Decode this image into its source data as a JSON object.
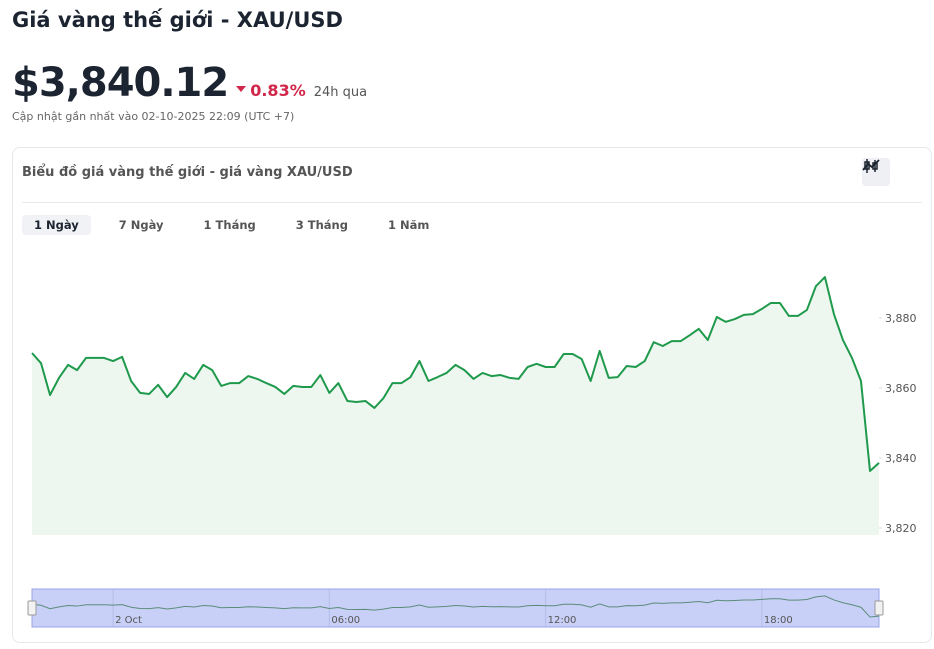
{
  "header": {
    "title": "Giá vàng thế giới - XAU/USD",
    "price": "$3,840.12",
    "change": "0.83%",
    "period": "24h qua",
    "updated": "Cập nhật gần nhất vào 02-10-2025 22:09 (UTC +7)"
  },
  "card": {
    "title": "Biểu đồ giá vàng thế giới - giá vàng XAU/USD",
    "tabs": [
      "1 Ngày",
      "7 Ngày",
      "1 Tháng",
      "3 Tháng",
      "1 Năm"
    ],
    "active_tab": 0
  },
  "chart_data": {
    "type": "area",
    "color": "#1f9a4c",
    "fill": "#eef6f0",
    "x": [
      -2.25,
      -2,
      -1.75,
      -1.5,
      -1.25,
      -1,
      -0.75,
      -0.5,
      -0.25,
      0,
      0.25,
      0.5,
      0.75,
      1,
      1.25,
      1.5,
      1.75,
      2,
      2.25,
      2.5,
      2.75,
      3,
      3.25,
      3.5,
      3.75,
      4,
      4.25,
      4.5,
      4.75,
      5,
      5.25,
      5.5,
      5.75,
      6,
      6.25,
      6.5,
      6.75,
      7,
      7.25,
      7.5,
      7.75,
      8,
      8.25,
      8.5,
      8.75,
      9,
      9.25,
      9.5,
      9.75,
      10,
      10.25,
      10.5,
      10.75,
      11,
      11.25,
      11.5,
      11.75,
      12,
      12.25,
      12.5,
      12.75,
      13,
      13.25,
      13.5,
      13.75,
      14,
      14.25,
      14.5,
      14.75,
      15,
      15.25,
      15.5,
      15.75,
      16,
      16.25,
      16.5,
      16.75,
      17,
      17.25,
      17.5,
      17.75,
      18,
      18.25,
      18.5,
      18.75,
      19,
      19.25,
      19.5,
      19.75,
      20,
      20.25,
      20.5,
      20.75,
      21,
      21.25
    ],
    "values": [
      3870.0,
      3867.1,
      3858.0,
      3862.9,
      3866.6,
      3865.1,
      3868.6,
      3868.6,
      3868.6,
      3867.7,
      3868.9,
      3862.0,
      3858.6,
      3858.3,
      3860.9,
      3857.4,
      3860.3,
      3864.3,
      3862.6,
      3866.6,
      3865.1,
      3860.6,
      3861.4,
      3861.4,
      3863.4,
      3862.6,
      3861.4,
      3860.3,
      3858.3,
      3860.6,
      3860.3,
      3860.3,
      3863.7,
      3858.6,
      3861.4,
      3856.3,
      3856.0,
      3856.3,
      3854.3,
      3857.1,
      3861.4,
      3861.4,
      3863.1,
      3867.7,
      3862.0,
      3863.1,
      3864.3,
      3866.6,
      3865.1,
      3862.6,
      3864.3,
      3863.4,
      3863.7,
      3862.9,
      3862.6,
      3866.0,
      3866.9,
      3866.0,
      3866.0,
      3869.7,
      3869.7,
      3868.3,
      3862.0,
      3870.6,
      3862.9,
      3863.1,
      3866.3,
      3866.0,
      3867.7,
      3873.1,
      3872.0,
      3873.4,
      3873.4,
      3875.1,
      3876.9,
      3873.7,
      3880.3,
      3878.9,
      3879.7,
      3880.9,
      3881.1,
      3882.6,
      3884.3,
      3884.3,
      3880.6,
      3880.6,
      3882.3,
      3889.1,
      3891.7,
      3881.1,
      3873.7,
      3868.6,
      3862.0,
      3836.3,
      3838.6
    ],
    "xlim": [
      -2.25,
      21.25
    ],
    "ylim": [
      3818,
      3902
    ],
    "yticks": [
      {
        "value": 3820,
        "label": "3,820"
      },
      {
        "value": 3840,
        "label": "3,840"
      },
      {
        "value": 3860,
        "label": "3,860"
      },
      {
        "value": 3880,
        "label": "3,880"
      }
    ],
    "xticks": [
      {
        "value": 0,
        "label": "2 Oct"
      },
      {
        "value": 6,
        "label": "06:00"
      },
      {
        "value": 12,
        "label": "12:00"
      },
      {
        "value": 18,
        "label": "18:00"
      }
    ],
    "grid": false
  }
}
